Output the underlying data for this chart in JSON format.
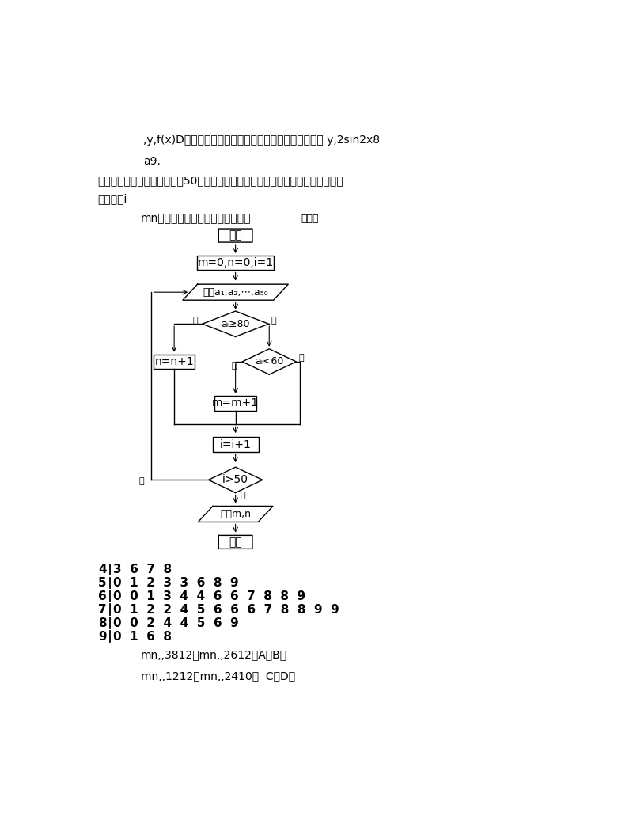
{
  "bg_color": "#ffffff",
  "text_color": "#000000",
  "line1": ",y,f(x)D（将函数的图像向左平移个单位，可得到的图像 y,2sin2x8",
  "line2": "a9.",
  "line3": "如图所示的茎叶图为高三某班50名学生的化学考试成绩，算法框图中输入的为茎叶",
  "line4": "图中的学i",
  "line5": "mn，生成绩，则输出的分别是（）",
  "flowchart_label": "附视图",
  "box_start": "开始",
  "box_init": "m=0,n=0,i=1",
  "box_input": "输入a₁,a₂,⋯,a₅₀",
  "diamond1_text": "aᵢ≥80",
  "label_yes1": "是",
  "label_no1": "否",
  "box_n": "n=n+1",
  "diamond2_text": "aᵢ<60",
  "label_no2": "否",
  "label_yes2": "是",
  "box_m": "m=m+1",
  "box_i": "i=i+1",
  "diamond3_text": "i>50",
  "label_no3": "否",
  "label_yes3": "是",
  "box_output": "输出m,n",
  "box_end": "结束",
  "stem_leaf": [
    {
      "stem": "4",
      "leaves": "3  6  7  8"
    },
    {
      "stem": "5",
      "leaves": "0  1  2  3  3  6  8  9"
    },
    {
      "stem": "6",
      "leaves": "0  0  1  3  4  4  6  6  7  8  8  9"
    },
    {
      "stem": "7",
      "leaves": "0  1  2  2  4  5  6  6  6  7  8  8  9  9"
    },
    {
      "stem": "8",
      "leaves": "0  0  2  4  4  5  6  9"
    },
    {
      "stem": "9",
      "leaves": "0  1  6  8"
    }
  ],
  "answer_line1": "mn,,3812，mn,,2612，A（B（",
  "answer_line2": "mn,,1212，mn,,2410，  C．D（"
}
